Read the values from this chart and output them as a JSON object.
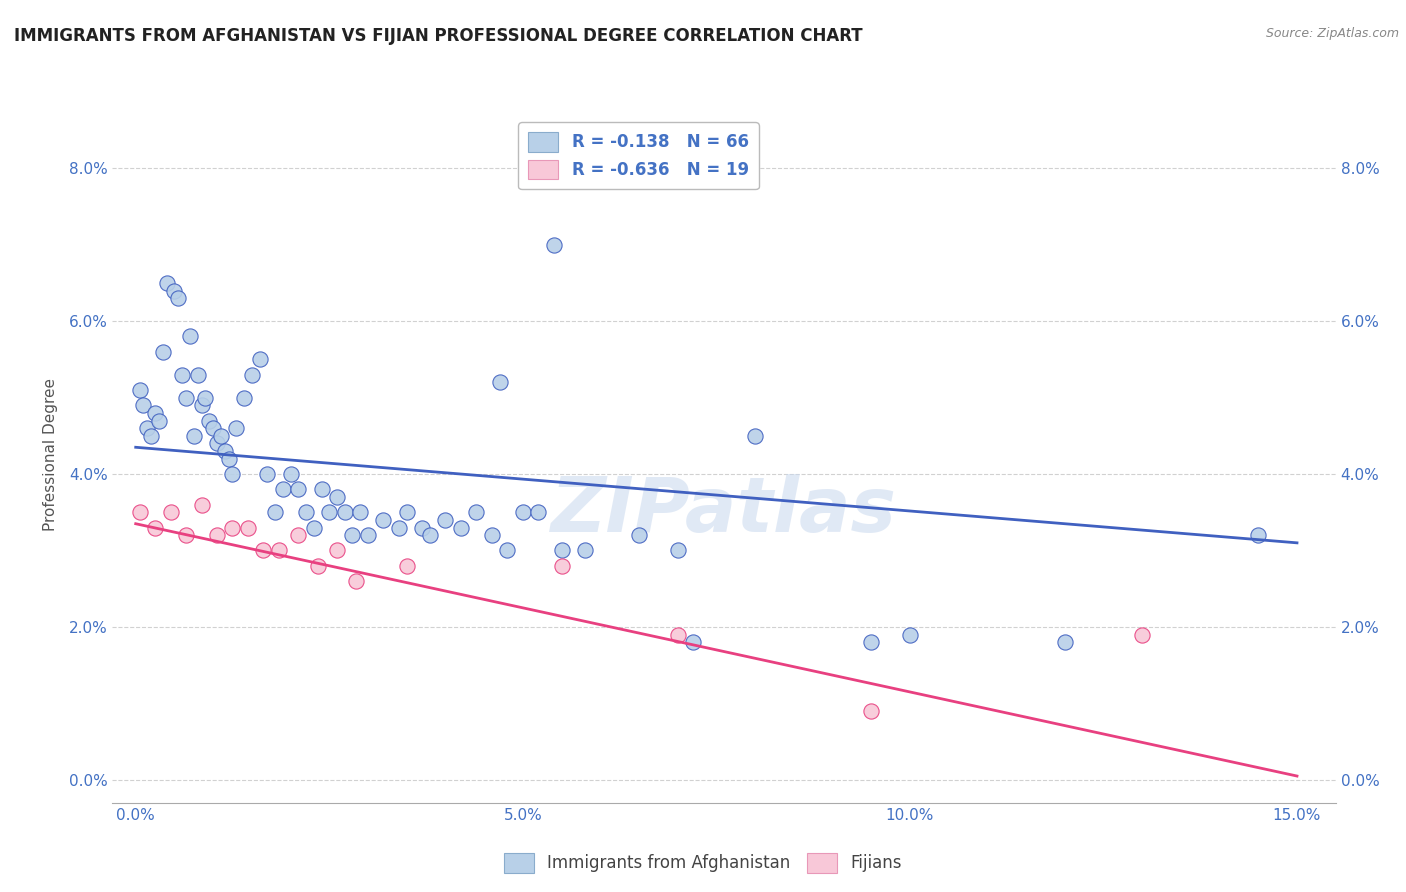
{
  "title": "IMMIGRANTS FROM AFGHANISTAN VS FIJIAN PROFESSIONAL DEGREE CORRELATION CHART",
  "source": "Source: ZipAtlas.com",
  "xlabel_ticks": [
    "0.0%",
    "5.0%",
    "10.0%",
    "15.0%"
  ],
  "xlabel_tick_vals": [
    0.0,
    5.0,
    10.0,
    15.0
  ],
  "ylabel_ticks": [
    "0.0%",
    "2.0%",
    "4.0%",
    "6.0%",
    "8.0%"
  ],
  "ylabel_tick_vals": [
    0.0,
    2.0,
    4.0,
    6.0,
    8.0
  ],
  "xlim": [
    -0.3,
    15.5
  ],
  "ylim": [
    -0.3,
    8.8
  ],
  "legend_label_afg": "Immigrants from Afghanistan",
  "legend_label_fij": "Fijians",
  "legend_r_afg": "R = -0.138",
  "legend_n_afg": "N = 66",
  "legend_r_fij": "R = -0.636",
  "legend_n_fij": "N = 19",
  "color_afg": "#b8d0e8",
  "color_fij": "#f8c8d8",
  "line_color_afg": "#4060c0",
  "line_color_fij": "#e84080",
  "legend_text_color": "#4472c4",
  "tick_color": "#4472c4",
  "afg_x": [
    0.05,
    0.1,
    0.15,
    0.2,
    0.25,
    0.3,
    0.35,
    0.4,
    0.5,
    0.55,
    0.6,
    0.65,
    0.7,
    0.75,
    0.8,
    0.85,
    0.9,
    0.95,
    1.0,
    1.05,
    1.1,
    1.15,
    1.2,
    1.25,
    1.3,
    1.4,
    1.5,
    1.6,
    1.7,
    1.8,
    1.9,
    2.0,
    2.1,
    2.2,
    2.3,
    2.4,
    2.5,
    2.6,
    2.7,
    2.8,
    2.9,
    3.0,
    3.2,
    3.4,
    3.5,
    3.7,
    3.8,
    4.0,
    4.2,
    4.4,
    4.6,
    4.7,
    4.8,
    5.0,
    5.2,
    5.4,
    5.5,
    5.8,
    6.5,
    7.0,
    7.2,
    8.0,
    9.5,
    10.0,
    12.0,
    14.5
  ],
  "afg_y": [
    5.1,
    4.9,
    4.6,
    4.5,
    4.8,
    4.7,
    5.6,
    6.5,
    6.4,
    6.3,
    5.3,
    5.0,
    5.8,
    4.5,
    5.3,
    4.9,
    5.0,
    4.7,
    4.6,
    4.4,
    4.5,
    4.3,
    4.2,
    4.0,
    4.6,
    5.0,
    5.3,
    5.5,
    4.0,
    3.5,
    3.8,
    4.0,
    3.8,
    3.5,
    3.3,
    3.8,
    3.5,
    3.7,
    3.5,
    3.2,
    3.5,
    3.2,
    3.4,
    3.3,
    3.5,
    3.3,
    3.2,
    3.4,
    3.3,
    3.5,
    3.2,
    5.2,
    3.0,
    3.5,
    3.5,
    7.0,
    3.0,
    3.0,
    3.2,
    3.0,
    1.8,
    4.5,
    1.8,
    1.9,
    1.8,
    3.2
  ],
  "fij_x": [
    0.05,
    0.25,
    0.45,
    0.65,
    0.85,
    1.05,
    1.25,
    1.45,
    1.65,
    1.85,
    2.1,
    2.35,
    2.6,
    2.85,
    3.5,
    5.5,
    7.0,
    9.5,
    13.0
  ],
  "fij_y": [
    3.5,
    3.3,
    3.5,
    3.2,
    3.6,
    3.2,
    3.3,
    3.3,
    3.0,
    3.0,
    3.2,
    2.8,
    3.0,
    2.6,
    2.8,
    2.8,
    1.9,
    0.9,
    1.9
  ],
  "afg_line_x": [
    0.0,
    15.0
  ],
  "afg_line_y": [
    4.35,
    3.1
  ],
  "fij_line_x": [
    0.0,
    15.0
  ],
  "fij_line_y": [
    3.35,
    0.05
  ],
  "background_color": "#ffffff",
  "grid_color": "#cccccc",
  "title_fontsize": 12,
  "axis_label_fontsize": 11,
  "tick_fontsize": 11,
  "marker_size": 120
}
